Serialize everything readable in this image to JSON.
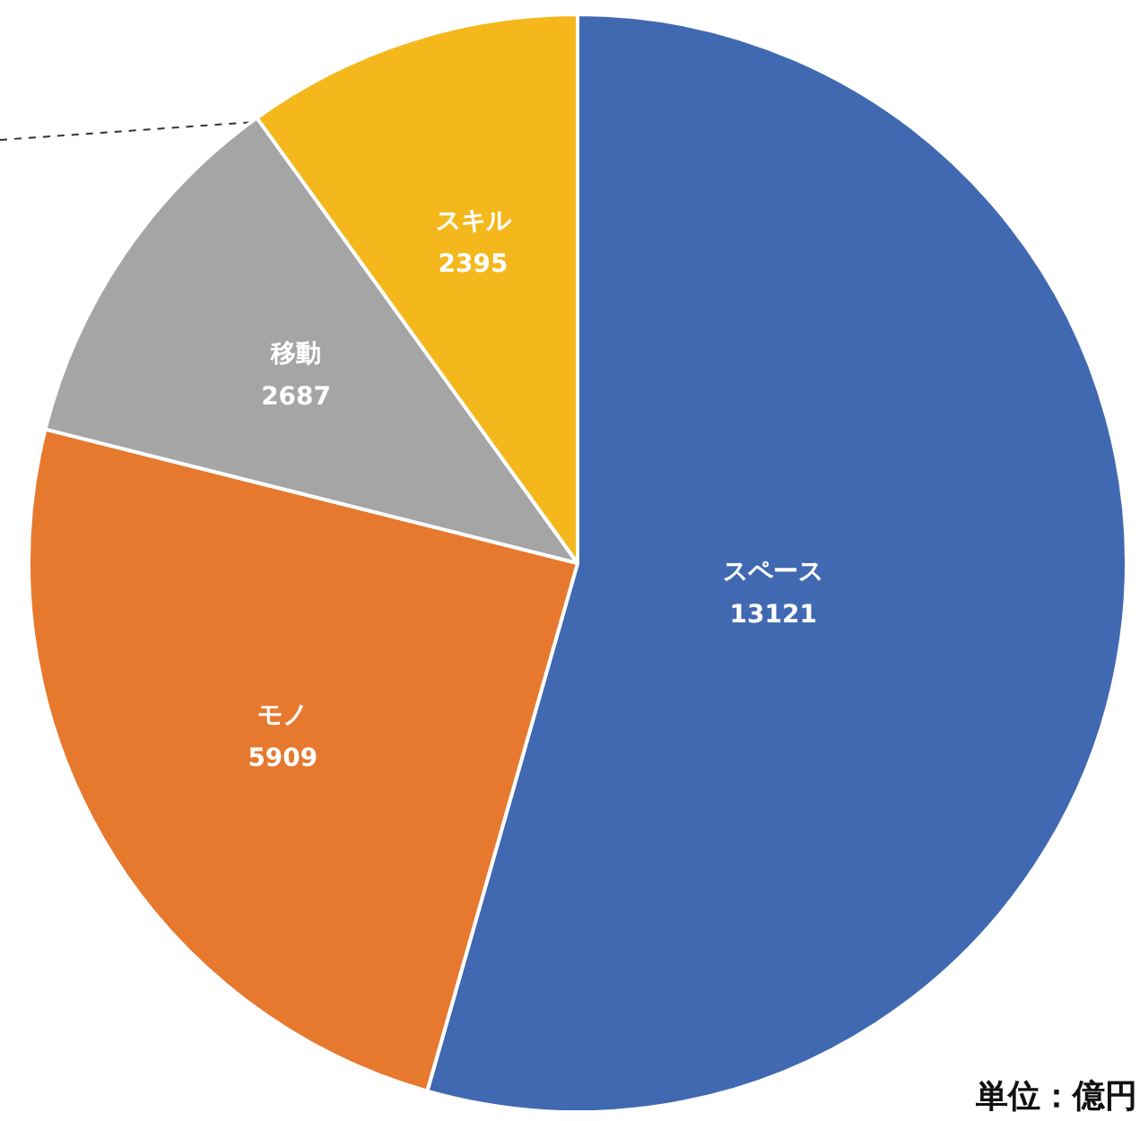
{
  "chart_data": {
    "type": "pie",
    "categories": [
      "スペース",
      "モノ",
      "移動",
      "スキル"
    ],
    "values": [
      13121,
      5909,
      2687,
      2395
    ],
    "colors": [
      "#4169b1",
      "#e7792f",
      "#a5a5a5",
      "#f4b81c"
    ],
    "data_labels": true,
    "annotations": [
      "単位：億円"
    ]
  }
}
